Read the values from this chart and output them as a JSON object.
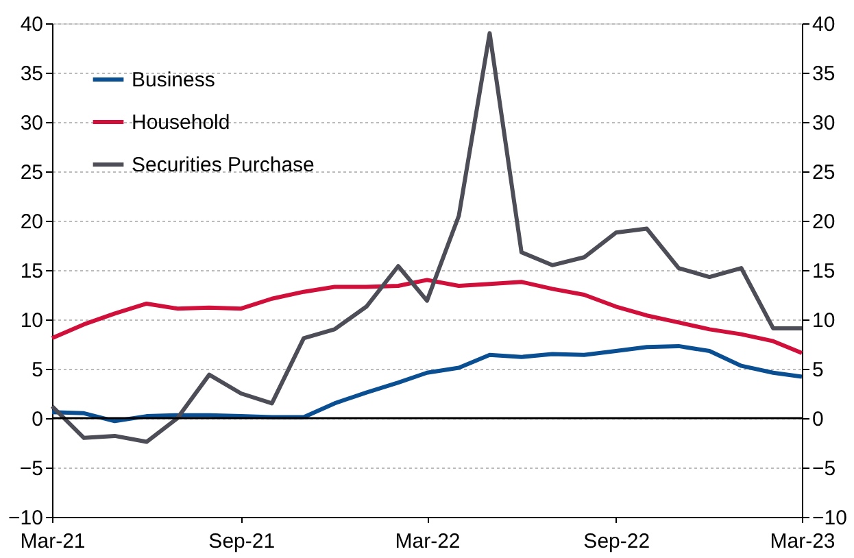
{
  "chart_data": {
    "type": "line",
    "x": [
      "2021-03",
      "2021-04",
      "2021-05",
      "2021-06",
      "2021-07",
      "2021-08",
      "2021-09",
      "2021-10",
      "2021-11",
      "2021-12",
      "2022-01",
      "2022-02",
      "2022-03",
      "2022-04",
      "2022-05",
      "2022-06",
      "2022-07",
      "2022-08",
      "2022-09",
      "2022-10",
      "2022-11",
      "2022-12",
      "2023-01",
      "2023-02",
      "2023-03"
    ],
    "series": [
      {
        "name": "Business",
        "color": "#0a4f92",
        "values": [
          0.6,
          0.5,
          -0.3,
          0.2,
          0.3,
          0.3,
          0.2,
          0.1,
          0.1,
          1.5,
          2.6,
          3.6,
          4.6,
          5.1,
          6.4,
          6.2,
          6.5,
          6.4,
          6.8,
          7.2,
          7.3,
          6.8,
          5.3,
          4.6,
          4.2
        ]
      },
      {
        "name": "Household",
        "color": "#d0103a",
        "values": [
          8.1,
          9.5,
          10.6,
          11.6,
          11.1,
          11.2,
          11.1,
          12.1,
          12.8,
          13.3,
          13.3,
          13.4,
          14.0,
          13.4,
          13.6,
          13.8,
          13.1,
          12.5,
          11.3,
          10.4,
          9.7,
          9.0,
          8.5,
          7.8,
          6.6
        ]
      },
      {
        "name": "Securities Purchase",
        "color": "#4d4d57",
        "values": [
          1.2,
          -2.0,
          -1.8,
          -2.4,
          0.0,
          4.4,
          2.5,
          1.5,
          8.1,
          9.0,
          11.3,
          15.4,
          11.9,
          20.5,
          39.0,
          16.8,
          15.5,
          16.3,
          18.8,
          19.2,
          15.2,
          14.3,
          15.2,
          9.1,
          9.1
        ]
      }
    ],
    "xlim": [
      "2021-03",
      "2023-03"
    ],
    "xticks": [
      {
        "value": "2021-03",
        "label": "Mar-21"
      },
      {
        "value": "2021-09",
        "label": "Sep-21"
      },
      {
        "value": "2022-03",
        "label": "Mar-22"
      },
      {
        "value": "2022-09",
        "label": "Sep-22"
      },
      {
        "value": "2023-03",
        "label": "Mar-23"
      }
    ],
    "ylim": [
      -10,
      40
    ],
    "yticks": [
      -10,
      -5,
      0,
      5,
      10,
      15,
      20,
      25,
      30,
      35,
      40
    ],
    "y2lim": [
      -10,
      40
    ],
    "y2ticks": [
      -10,
      -5,
      0,
      5,
      10,
      15,
      20,
      25,
      30,
      35,
      40
    ],
    "ref_lines": [
      {
        "axis": "y",
        "value": 0,
        "color": "#000000"
      }
    ],
    "grid": "y",
    "legend": "top left",
    "line_style": "solid",
    "marker": "none"
  }
}
